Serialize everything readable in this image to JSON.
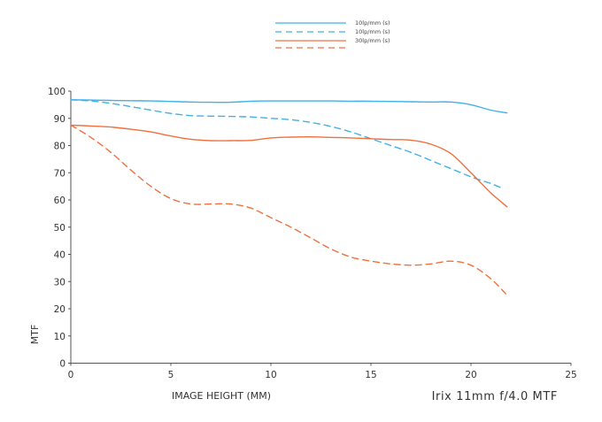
{
  "chart_data": {
    "type": "line",
    "title": "Irix 11mm f/4.0 MTF",
    "xlabel": "IMAGE HEIGHT (MM)",
    "ylabel": "MTF",
    "xlim": [
      0,
      25
    ],
    "ylim": [
      0,
      100
    ],
    "x_ticks": [
      0,
      5,
      10,
      15,
      20,
      25
    ],
    "y_ticks": [
      0,
      10,
      20,
      30,
      40,
      50,
      60,
      70,
      80,
      90,
      100
    ],
    "grid": false,
    "legend_position": "top-center",
    "series": [
      {
        "name": "10lp/mm (s)",
        "color": "#3fb2e6",
        "style": "solid",
        "x": [
          0,
          1,
          2,
          3,
          4,
          5,
          6,
          7,
          8,
          9,
          10,
          11,
          12,
          13,
          14,
          15,
          16,
          17,
          18,
          19,
          20,
          21,
          21.8
        ],
        "y": [
          96.8,
          96.7,
          96.6,
          96.5,
          96.4,
          96.2,
          96.0,
          95.9,
          95.9,
          96.3,
          96.4,
          96.4,
          96.4,
          96.4,
          96.3,
          96.3,
          96.2,
          96.1,
          96.0,
          96.0,
          95.0,
          93.0,
          92.0
        ]
      },
      {
        "name": "10lp/mm (s)",
        "color": "#3fb2e6",
        "style": "dashed",
        "x": [
          0,
          1,
          2,
          3,
          4,
          5,
          6,
          7,
          8,
          9,
          10,
          11,
          12,
          13,
          14,
          15,
          16,
          17,
          18,
          19,
          20,
          21,
          21.5
        ],
        "y": [
          96.8,
          96.4,
          95.5,
          94.3,
          93.0,
          91.8,
          91.0,
          90.8,
          90.7,
          90.5,
          90.0,
          89.5,
          88.5,
          87.0,
          85.0,
          82.5,
          80.0,
          77.5,
          74.5,
          71.5,
          68.5,
          66.0,
          64.5
        ]
      },
      {
        "name": "30lp/mm (s)",
        "color": "#f0703d",
        "style": "solid",
        "x": [
          0,
          1,
          2,
          3,
          4,
          5,
          6,
          7,
          8,
          9,
          10,
          11,
          12,
          13,
          14,
          15,
          16,
          17,
          18,
          19,
          20,
          21,
          21.8
        ],
        "y": [
          87.5,
          87.2,
          86.8,
          86.0,
          85.0,
          83.5,
          82.3,
          81.8,
          81.8,
          81.9,
          82.8,
          83.1,
          83.2,
          83.0,
          82.8,
          82.5,
          82.2,
          82.0,
          80.5,
          77.0,
          70.0,
          62.5,
          57.5
        ]
      },
      {
        "name": "",
        "color": "#f0703d",
        "style": "dashed",
        "x": [
          0,
          1,
          2,
          3,
          4,
          5,
          6,
          7,
          8,
          9,
          10,
          11,
          12,
          13,
          14,
          15,
          16,
          17,
          18,
          19,
          20,
          21,
          21.8
        ],
        "y": [
          87.5,
          83.0,
          77.5,
          71.0,
          65.0,
          60.5,
          58.5,
          58.5,
          58.5,
          57.0,
          53.5,
          50.0,
          46.0,
          42.0,
          39.0,
          37.5,
          36.5,
          36.0,
          36.5,
          37.5,
          36.0,
          31.0,
          25.0
        ]
      }
    ]
  }
}
